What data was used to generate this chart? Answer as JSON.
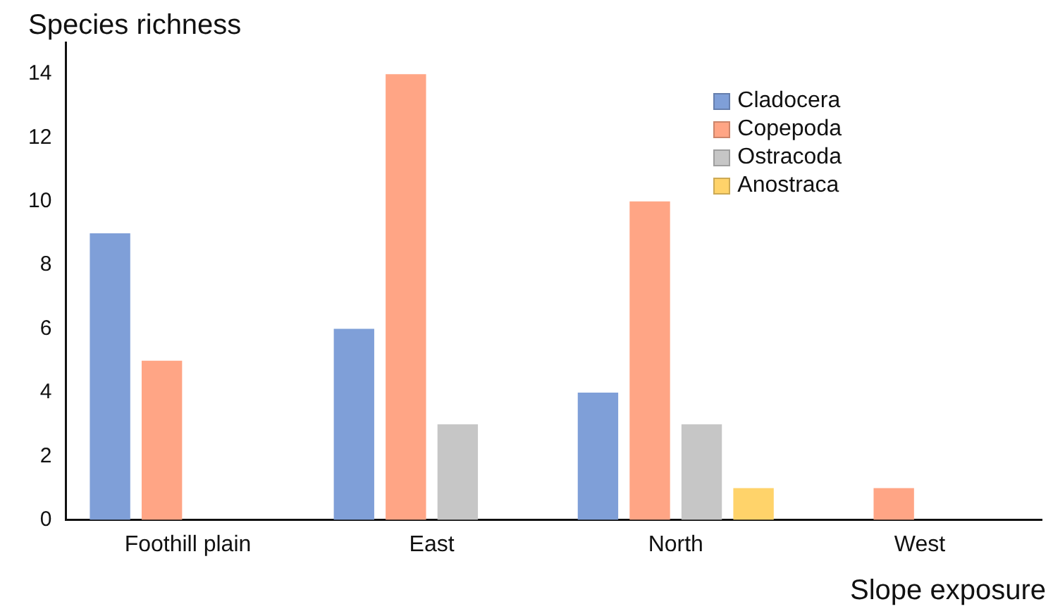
{
  "chart_data": {
    "type": "bar",
    "xlabel": "Slope exposure",
    "ylabel": "Species richness",
    "categories": [
      "Foothill plain",
      "East",
      "North",
      "West"
    ],
    "series": [
      {
        "name": "Cladocera",
        "color": "#7f9fd8",
        "values": [
          9,
          6,
          4,
          0
        ]
      },
      {
        "name": "Copepoda",
        "color": "#ffa585",
        "values": [
          5,
          14,
          10,
          1
        ]
      },
      {
        "name": "Ostracoda",
        "color": "#c6c6c6",
        "values": [
          0,
          3,
          3,
          0
        ]
      },
      {
        "name": "Anostraca",
        "color": "#ffd36a",
        "values": [
          0,
          0,
          1,
          0
        ]
      }
    ],
    "ylim": [
      0,
      15
    ],
    "yticks": [
      0,
      2,
      4,
      6,
      8,
      10,
      12,
      14
    ],
    "grid": false,
    "legend": "top right"
  }
}
